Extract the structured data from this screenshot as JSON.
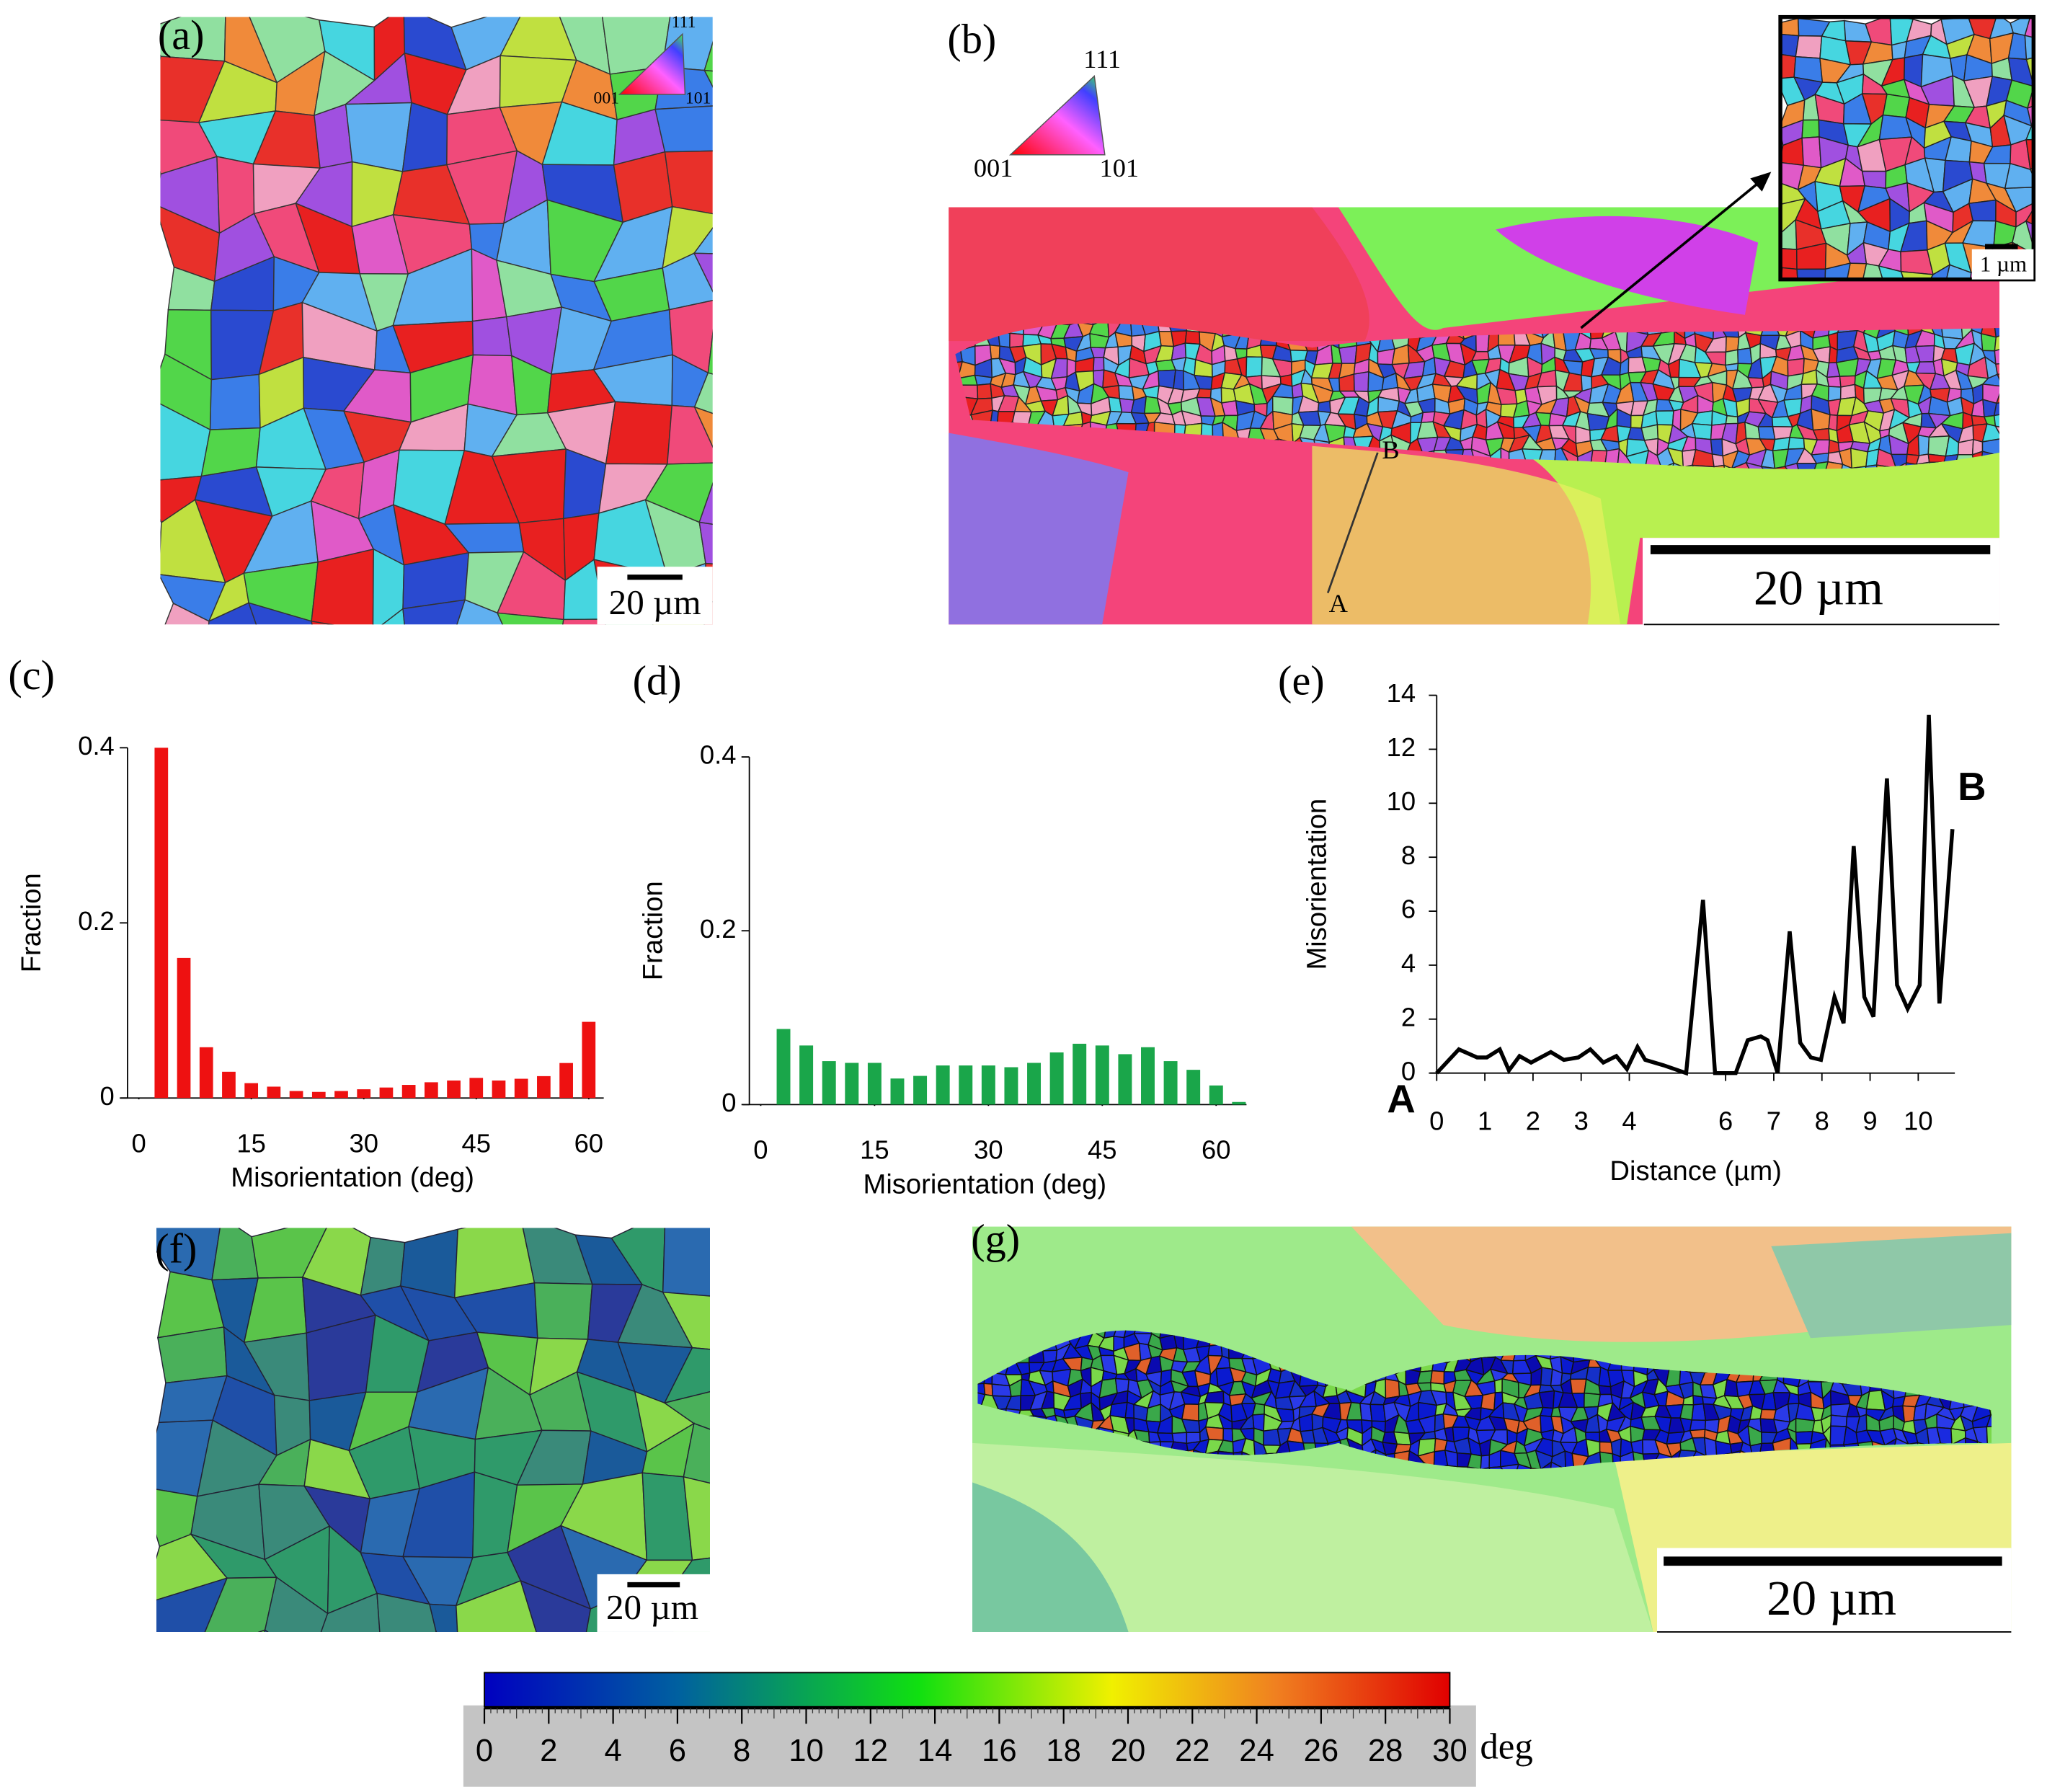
{
  "panel_labels": [
    "(a)",
    "(b)",
    "(c)",
    "(d)",
    "(e)",
    "(f)",
    "(g)"
  ],
  "ipf_labels": [
    "111",
    "001",
    "101"
  ],
  "scale_bars": [
    "20 µm",
    "20 µm",
    "1 µm",
    "20 µm",
    "20 µm"
  ],
  "point_labels": [
    "A",
    "B"
  ],
  "colorbar": {
    "range": [
      0,
      30
    ],
    "ticks": [
      0,
      2,
      4,
      6,
      8,
      10,
      12,
      14,
      16,
      18,
      20,
      22,
      24,
      26,
      28,
      30
    ],
    "unit": "deg"
  },
  "chart_data": [
    {
      "type": "bar",
      "xlabel": "Misorientation (deg)",
      "ylabel": "Fraction",
      "color": "#ee1111",
      "x": [
        3,
        6,
        9,
        12,
        15,
        18,
        21,
        24,
        27,
        30,
        33,
        36,
        39,
        42,
        45,
        48,
        51,
        54,
        57,
        60
      ],
      "values": [
        0.4,
        0.16,
        0.058,
        0.03,
        0.017,
        0.013,
        0.008,
        0.007,
        0.008,
        0.01,
        0.012,
        0.015,
        0.018,
        0.02,
        0.023,
        0.02,
        0.022,
        0.025,
        0.04,
        0.087
      ],
      "xlim": [
        -1.5,
        62
      ],
      "xticks": [
        0,
        15,
        30,
        45,
        60
      ],
      "ylim": [
        0,
        0.4
      ],
      "yticks": [
        0,
        0.2,
        0.4
      ]
    },
    {
      "type": "bar",
      "xlabel": "Misorientation (deg)",
      "ylabel": "Fraction",
      "color": "#1aa64a",
      "x": [
        3,
        6,
        9,
        12,
        15,
        18,
        21,
        24,
        27,
        30,
        33,
        36,
        39,
        42,
        45,
        48,
        51,
        54,
        57,
        60,
        63
      ],
      "values": [
        0.087,
        0.068,
        0.05,
        0.048,
        0.048,
        0.03,
        0.033,
        0.045,
        0.045,
        0.045,
        0.043,
        0.048,
        0.06,
        0.07,
        0.068,
        0.058,
        0.066,
        0.05,
        0.04,
        0.022,
        0.003
      ],
      "xlim": [
        -1.5,
        64
      ],
      "xticks": [
        0,
        15,
        30,
        45,
        60
      ],
      "ylim": [
        0,
        0.4
      ],
      "yticks": [
        0,
        0.2,
        0.4
      ]
    },
    {
      "type": "line",
      "xlabel": "Distance (µm)",
      "ylabel": "Misorientation",
      "color": "#000000",
      "x": [
        0,
        0.46,
        0.84,
        1.04,
        1.31,
        1.5,
        1.72,
        1.96,
        2.37,
        2.64,
        2.94,
        3.19,
        3.46,
        3.73,
        3.95,
        4.17,
        4.33,
        4.71,
        5.18,
        5.53,
        5.78,
        6.21,
        6.46,
        6.73,
        6.87,
        7.08,
        7.33,
        7.55,
        7.77,
        7.98,
        8.26,
        8.45,
        8.66,
        8.88,
        9.07,
        9.35,
        9.56,
        9.78,
        10.03,
        10.22,
        10.44,
        10.71
      ],
      "values": [
        0,
        0.88,
        0.58,
        0.58,
        0.88,
        0.1,
        0.63,
        0.39,
        0.78,
        0.49,
        0.58,
        0.88,
        0.39,
        0.63,
        0.15,
        0.97,
        0.49,
        0.29,
        0,
        6.42,
        0,
        0,
        1.22,
        1.36,
        1.22,
        0,
        5.25,
        1.12,
        0.58,
        0.49,
        2.82,
        1.85,
        8.41,
        2.82,
        2.09,
        10.92,
        3.26,
        2.38,
        3.26,
        13.27,
        2.58,
        9.04
      ],
      "annotations": [
        "A",
        "B"
      ],
      "xlim": [
        0,
        10.76
      ],
      "xticks": [
        0,
        1,
        2,
        3,
        4,
        6,
        7,
        8,
        9,
        10
      ],
      "ylim": [
        0,
        14
      ],
      "yticks": [
        0,
        2,
        4,
        6,
        8,
        10,
        12,
        14
      ]
    }
  ]
}
